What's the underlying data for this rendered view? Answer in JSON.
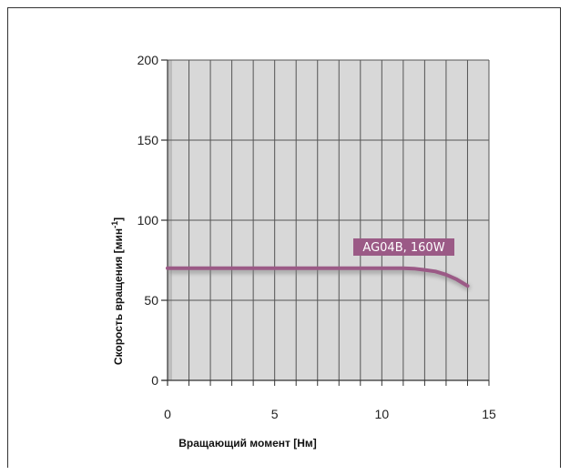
{
  "chart_data": {
    "type": "line",
    "xlabel": "Вращающий момент [Нм]",
    "ylabel_main": "Скорость вращения [мин",
    "ylabel_sup": "-1",
    "ylabel_end": "]",
    "xlim": [
      0,
      15
    ],
    "ylim": [
      0,
      200
    ],
    "xticks": [
      "0",
      "5",
      "10",
      "15"
    ],
    "yticks": [
      "0",
      "50",
      "100",
      "150",
      "200"
    ],
    "grid": true,
    "series": [
      {
        "name": "AG04B, 160W",
        "color": "#9b5a86",
        "x": [
          0,
          2,
          4,
          6,
          8,
          10,
          11,
          11.5,
          12,
          12.5,
          13,
          13.5,
          14
        ],
        "y": [
          70,
          70,
          70,
          70,
          70,
          70,
          70,
          69.8,
          69,
          68,
          66,
          63,
          59
        ]
      }
    ]
  }
}
